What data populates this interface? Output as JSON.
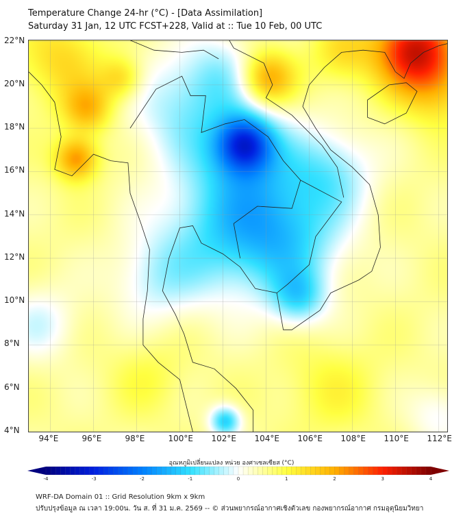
{
  "header": {
    "title": "Temperature Change 24-hr (°C) - [Data Assimilation]",
    "subtitle": "Saturday 31 Jan, 12 UTC FCST+228, Valid at :: Tue 10 Feb, 00 UTC"
  },
  "chart_data": {
    "type": "heatmap",
    "title": "Temperature Change 24-hr (°C)",
    "lon_range": [
      93,
      112.4
    ],
    "lat_range": [
      4,
      22.05
    ],
    "x_ticks": [
      "94°E",
      "96°E",
      "98°E",
      "100°E",
      "102°E",
      "104°E",
      "106°E",
      "108°E",
      "110°E",
      "112°E"
    ],
    "x_tick_values": [
      94,
      96,
      98,
      100,
      102,
      104,
      106,
      108,
      110,
      112
    ],
    "y_ticks": [
      "22°N",
      "20°N",
      "18°N",
      "16°N",
      "14°N",
      "12°N",
      "10°N",
      "8°N",
      "6°N",
      "4°N"
    ],
    "y_tick_values": [
      22,
      20,
      18,
      16,
      14,
      12,
      10,
      8,
      6,
      4
    ],
    "background_value": 0.55,
    "field_anomalies": [
      {
        "lon": 110.8,
        "lat": 21.7,
        "value": 2.6,
        "spread": 1.3
      },
      {
        "lon": 104.0,
        "lat": 20.3,
        "value": 1.7,
        "spread": 0.9
      },
      {
        "lon": 95.2,
        "lat": 16.6,
        "value": 1.7,
        "spread": 0.7
      },
      {
        "lon": 95.7,
        "lat": 18.9,
        "value": 1.3,
        "spread": 0.8
      },
      {
        "lon": 97.3,
        "lat": 20.3,
        "value": 1.0,
        "spread": 0.7
      },
      {
        "lon": 94.5,
        "lat": 21.2,
        "value": 0.9,
        "spread": 1.4
      },
      {
        "lon": 112.0,
        "lat": 20.0,
        "value": 1.0,
        "spread": 1.3
      },
      {
        "lon": 107.5,
        "lat": 21.5,
        "value": 0.8,
        "spread": 1.0
      },
      {
        "lon": 103.0,
        "lat": 17.3,
        "value": -2.4,
        "spread": 0.9
      },
      {
        "lon": 103.0,
        "lat": 16.5,
        "value": -1.3,
        "spread": 1.8
      },
      {
        "lon": 104.8,
        "lat": 13.0,
        "value": -1.6,
        "spread": 1.9
      },
      {
        "lon": 105.5,
        "lat": 10.2,
        "value": -1.2,
        "spread": 0.9
      },
      {
        "lon": 101.5,
        "lat": 13.0,
        "value": -1.1,
        "spread": 2.0
      },
      {
        "lon": 107.0,
        "lat": 16.0,
        "value": -1.0,
        "spread": 1.4
      },
      {
        "lon": 100.0,
        "lat": 19.0,
        "value": -0.9,
        "spread": 1.8
      },
      {
        "lon": 102.0,
        "lat": 20.5,
        "value": -0.8,
        "spread": 1.3
      },
      {
        "lon": 102.1,
        "lat": 4.5,
        "value": -1.7,
        "spread": 0.5
      },
      {
        "lon": 98.8,
        "lat": 11.0,
        "value": -0.7,
        "spread": 1.4
      },
      {
        "lon": 93.5,
        "lat": 9.0,
        "value": -0.7,
        "spread": 1.2
      },
      {
        "lon": 112.0,
        "lat": 4.8,
        "value": -0.6,
        "spread": 1.0
      },
      {
        "lon": 107.0,
        "lat": 6.0,
        "value": 0.5,
        "spread": 1.5
      },
      {
        "lon": 98.5,
        "lat": 6.5,
        "value": 0.4,
        "spread": 1.2
      }
    ]
  },
  "colorbar": {
    "label": "อุณหภูมิเปลี่ยนแปลง หน่วย องศาเซลเซียส (°C)",
    "min": -4,
    "max": 4,
    "ticks": [
      "-4",
      "-3",
      "-2",
      "-1",
      "0",
      "1",
      "2",
      "3",
      "4"
    ],
    "colors": [
      "#00007f",
      "#0020e0",
      "#0080ff",
      "#30e0ff",
      "#ffffff",
      "#ffff40",
      "#ffb000",
      "#ff2000",
      "#7f0000"
    ]
  },
  "footer": {
    "line1": "WRF-DA Domain 01 :: Grid Resolution 9km x 9km",
    "line2": "ปรับปรุงข้อมูล ณ เวลา 19:00น. วัน ส. ที่ 31 ม.ค. 2569 -- © ส่วนพยากรณ์อากาศเชิงตัวเลข กองพยากรณ์อากาศ กรมอุตุนิยมวิทยา"
  }
}
